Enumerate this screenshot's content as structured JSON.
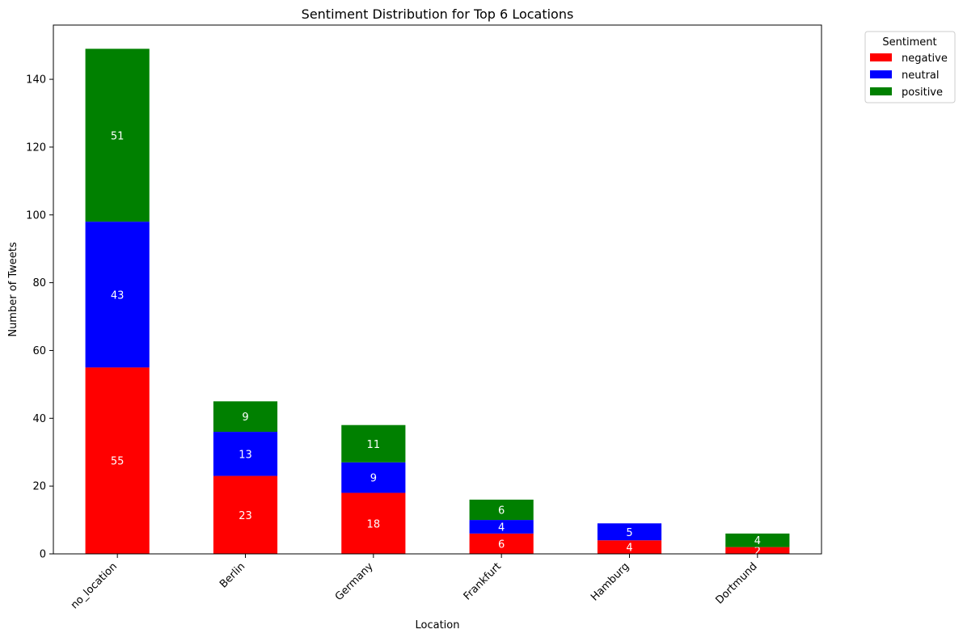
{
  "chart_data": {
    "type": "bar",
    "stacked": true,
    "title": "Sentiment Distribution for Top 6 Locations",
    "xlabel": "Location",
    "ylabel": "Number of Tweets",
    "categories": [
      "no_location",
      "Berlin",
      "Germany",
      "Frankfurt",
      "Hamburg",
      "Dortmund"
    ],
    "series": [
      {
        "name": "negative",
        "color": "#ff0000",
        "values": [
          55,
          23,
          18,
          6,
          4,
          2
        ]
      },
      {
        "name": "neutral",
        "color": "#0000ff",
        "values": [
          43,
          13,
          9,
          4,
          5,
          0
        ]
      },
      {
        "name": "positive",
        "color": "#008000",
        "values": [
          51,
          9,
          11,
          6,
          0,
          4
        ]
      }
    ],
    "ylim": [
      0,
      156
    ],
    "yticks": [
      0,
      20,
      40,
      60,
      80,
      100,
      120,
      140
    ],
    "grid": false,
    "legend": {
      "title": "Sentiment",
      "placement": "outside-top-right"
    }
  }
}
